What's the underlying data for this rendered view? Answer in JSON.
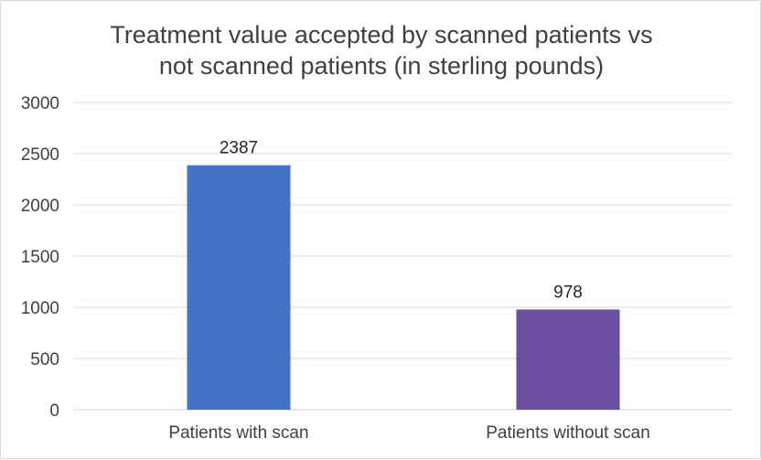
{
  "chart_data": {
    "type": "bar",
    "title_lines": [
      "Treatment value accepted by scanned patients vs",
      "not scanned patients (in sterling pounds)"
    ],
    "categories": [
      "Patients with scan",
      "Patients without scan"
    ],
    "values": [
      2387,
      978
    ],
    "data_labels": [
      "2387",
      "978"
    ],
    "bar_colors": [
      "#4472C4",
      "#6B4EA0"
    ],
    "ylim": [
      0,
      3000
    ],
    "yticks": [
      0,
      500,
      1000,
      1500,
      2000,
      2500,
      3000
    ],
    "ytick_labels": [
      "0",
      "500",
      "1000",
      "1500",
      "2000",
      "2500",
      "3000"
    ],
    "xlabel": "",
    "ylabel": "",
    "grid": true,
    "legend": "none"
  }
}
